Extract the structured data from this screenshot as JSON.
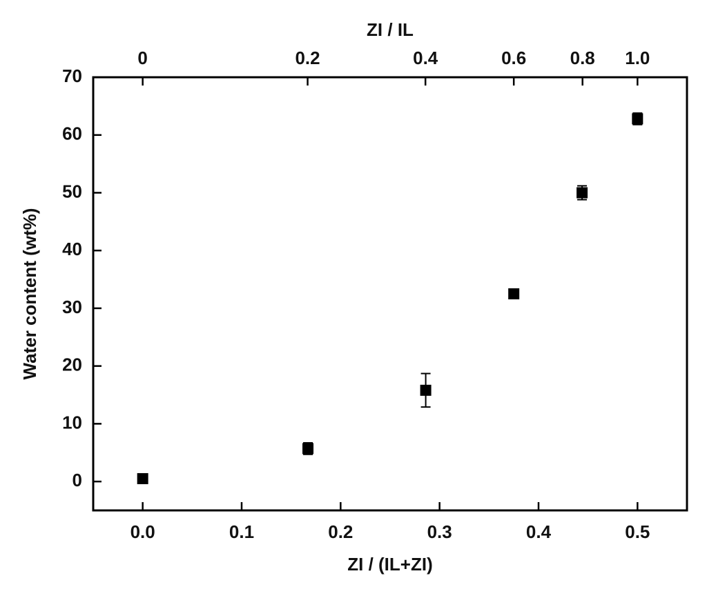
{
  "chart_data": {
    "type": "scatter",
    "xlabel": "ZI / (IL+ZI)",
    "ylabel": "Water content (wt%)",
    "x2label": "ZI / IL",
    "x": [
      0,
      0.167,
      0.286,
      0.375,
      0.444,
      0.5
    ],
    "values": [
      0.5,
      5.7,
      15.8,
      32.5,
      50,
      62.8
    ],
    "errors": [
      0.4,
      1,
      2.9,
      0.6,
      1.2,
      1
    ],
    "color": "#000000",
    "xlim": [
      -0.05,
      0.55
    ],
    "xticks": [
      {
        "value": 0,
        "label": "0.0"
      },
      0.1,
      0.2,
      0.3,
      0.4,
      0.5
    ],
    "ylim": [
      -5,
      70
    ],
    "yticks": [
      0,
      10,
      20,
      30,
      40,
      50,
      60,
      70
    ],
    "x2scale": "fraction",
    "x2ticks": [
      0,
      0.2,
      0.4,
      0.6,
      0.8,
      {
        "value": 1,
        "label": "1.0"
      }
    ],
    "grid": false
  }
}
